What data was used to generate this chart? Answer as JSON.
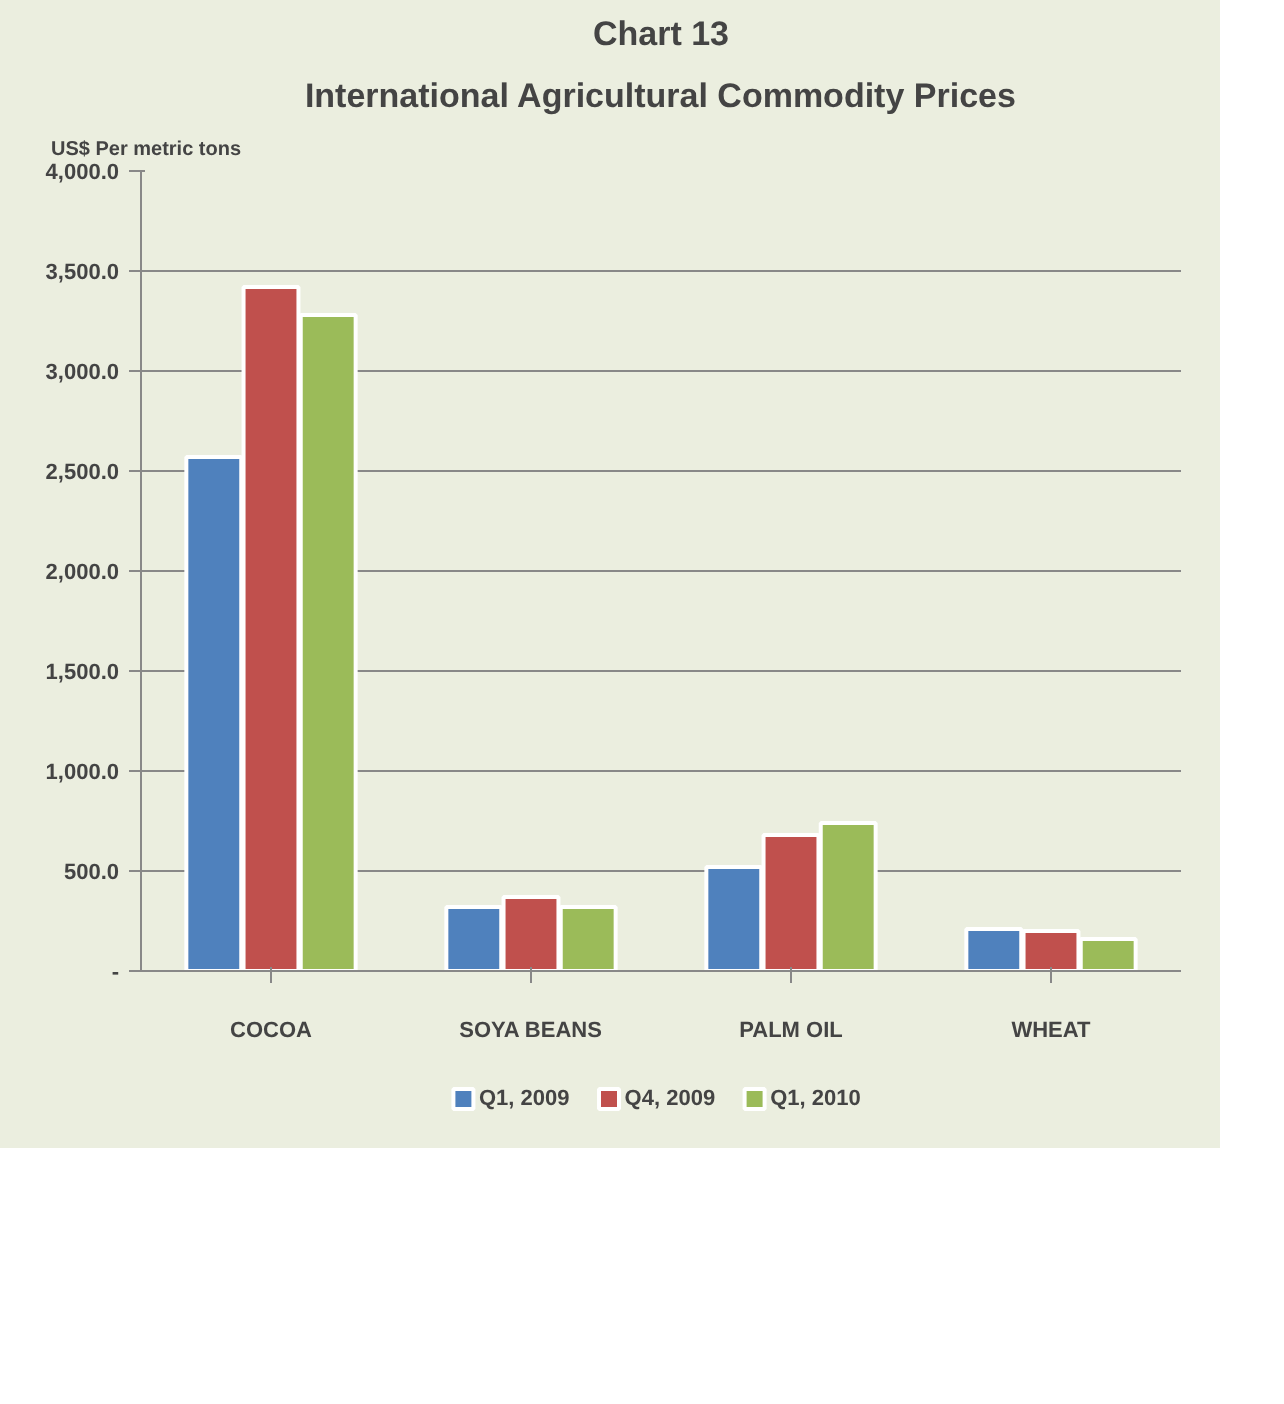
{
  "chart_data": {
    "type": "bar",
    "title": "Chart 13",
    "subtitle": "International Agricultural Commodity Prices",
    "ylabel": "US$ Per metric tons",
    "categories": [
      "COCOA",
      "SOYA BEANS",
      "PALM OIL",
      "WHEAT"
    ],
    "series": [
      {
        "name": "Q1, 2009",
        "color": "#4f81bd",
        "values": [
          2570,
          320,
          520,
          210
        ]
      },
      {
        "name": "Q4, 2009",
        "color": "#c0504d",
        "values": [
          3420,
          370,
          680,
          200
        ]
      },
      {
        "name": "Q1, 2010",
        "color": "#9bbb59",
        "values": [
          3280,
          320,
          740,
          160
        ]
      }
    ],
    "ylim": [
      0,
      4000
    ],
    "yticks": [
      {
        "value": 0,
        "label": "-"
      },
      {
        "value": 500,
        "label": "500.0"
      },
      {
        "value": 1000,
        "label": "1,000.0"
      },
      {
        "value": 1500,
        "label": "1,500.0"
      },
      {
        "value": 2000,
        "label": "2,000.0"
      },
      {
        "value": 2500,
        "label": "2,500.0"
      },
      {
        "value": 3000,
        "label": "3,000.0"
      },
      {
        "value": 3500,
        "label": "3,500.0"
      },
      {
        "value": 4000,
        "label": "4,000.0"
      }
    ],
    "grid": "y",
    "legend": "bottom"
  }
}
